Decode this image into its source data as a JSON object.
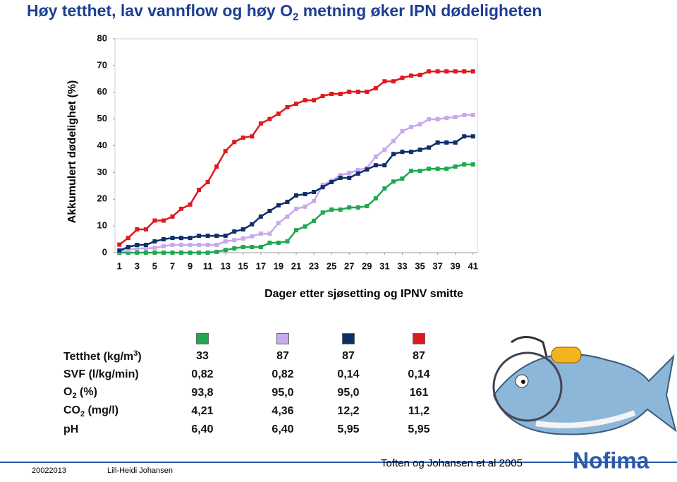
{
  "slide": {
    "title": [
      "Høy tetthet, lav vannflow og høy O",
      "2",
      " metning øker IPN dødeligheten"
    ]
  },
  "chart_data": {
    "type": "line",
    "y_label": "Akkumulert dødelighet (%)",
    "x_label": "Dager etter sjøsetting og IPNV smitte",
    "x": [
      1,
      2,
      3,
      4,
      5,
      6,
      7,
      8,
      9,
      10,
      11,
      12,
      13,
      14,
      15,
      16,
      17,
      18,
      19,
      20,
      21,
      22,
      23,
      24,
      25,
      26,
      27,
      28,
      29,
      30,
      31,
      32,
      33,
      34,
      35,
      36,
      37,
      38,
      39,
      40,
      41
    ],
    "xlim": [
      0.5,
      41.5
    ],
    "xticks": [
      1,
      3,
      5,
      7,
      9,
      11,
      13,
      15,
      17,
      19,
      21,
      23,
      25,
      27,
      29,
      31,
      33,
      35,
      37,
      39,
      41
    ],
    "ylim": [
      0,
      80
    ],
    "yticks": [
      0,
      10,
      20,
      30,
      40,
      50,
      60,
      70,
      80
    ],
    "series": [
      {
        "color": "#1fa84f",
        "values": [
          0,
          0,
          0,
          0,
          0,
          0,
          0,
          0,
          0,
          0,
          0,
          0.3,
          1,
          1.6,
          2.1,
          2.1,
          2.1,
          3.7,
          3.7,
          4.2,
          8.4,
          9.8,
          11.9,
          15,
          16.1,
          16.1,
          16.9,
          16.9,
          17.4,
          20.3,
          24,
          26.6,
          27.7,
          30.6,
          30.6,
          31.4,
          31.4,
          31.4,
          32.2,
          33,
          33
        ]
      },
      {
        "color": "#c9a9ef",
        "values": [
          0.5,
          1,
          1.6,
          1.6,
          1.8,
          2.4,
          2.9,
          2.9,
          2.9,
          2.9,
          2.9,
          2.9,
          4.2,
          4.7,
          5.3,
          6.1,
          7.1,
          7.1,
          11.1,
          13.5,
          16.4,
          17.2,
          19.3,
          25.3,
          26.9,
          29,
          29.8,
          30.9,
          31.7,
          35.9,
          38.5,
          41.7,
          45.4,
          47,
          48,
          49.9,
          49.9,
          50.4,
          50.7,
          51.5,
          51.5
        ]
      },
      {
        "color": "#0f2f6b",
        "values": [
          0.8,
          2.1,
          2.9,
          2.9,
          4.2,
          5,
          5.5,
          5.5,
          5.5,
          6.3,
          6.3,
          6.3,
          6.3,
          7.9,
          8.7,
          10.6,
          13.5,
          15.6,
          17.7,
          19,
          21.4,
          21.9,
          22.7,
          24.5,
          26.4,
          28,
          28,
          29.6,
          31.1,
          32.7,
          32.7,
          36.9,
          37.7,
          37.7,
          38.5,
          39.3,
          41.2,
          41.2,
          41.2,
          43.5,
          43.5
        ]
      },
      {
        "color": "#e0191f",
        "values": [
          3,
          5.5,
          8.7,
          8.7,
          12,
          12,
          13.5,
          16.4,
          18,
          23.5,
          26.4,
          32.2,
          38,
          41.4,
          43,
          43.5,
          48.3,
          50,
          52,
          54.4,
          55.7,
          57,
          57,
          58.6,
          59.4,
          59.4,
          60.2,
          60.2,
          60.2,
          61.5,
          64.1,
          64.1,
          65.4,
          66.2,
          66.5,
          67.8,
          67.8,
          67.8,
          67.8,
          67.8,
          67.8
        ]
      }
    ]
  },
  "table": {
    "rows": [
      {
        "label": [
          "Tetthet (kg/m",
          "3",
          ")"
        ],
        "cells": [
          "33",
          "87",
          "87",
          "87"
        ]
      },
      {
        "label": [
          "SVF (l/kg/min)"
        ],
        "cells": [
          "0,82",
          "0,82",
          "0,14",
          "0,14"
        ]
      },
      {
        "label": [
          "O",
          "2",
          " (%)"
        ],
        "cells": [
          "93,8",
          "95,0",
          "95,0",
          "161"
        ]
      },
      {
        "label": [
          "CO",
          "2",
          " (mg/l)"
        ],
        "cells": [
          "4,21",
          "4,36",
          "12,2",
          "11,2"
        ]
      },
      {
        "label": [
          "pH"
        ],
        "cells": [
          "6,40",
          "6,40",
          "5,95",
          "5,95"
        ]
      }
    ]
  },
  "footer": {
    "date": "20022013",
    "author": "Lill-Heidi Johansen",
    "citation": "Toften og Johansen et al 2005",
    "logo": "Nofima"
  }
}
